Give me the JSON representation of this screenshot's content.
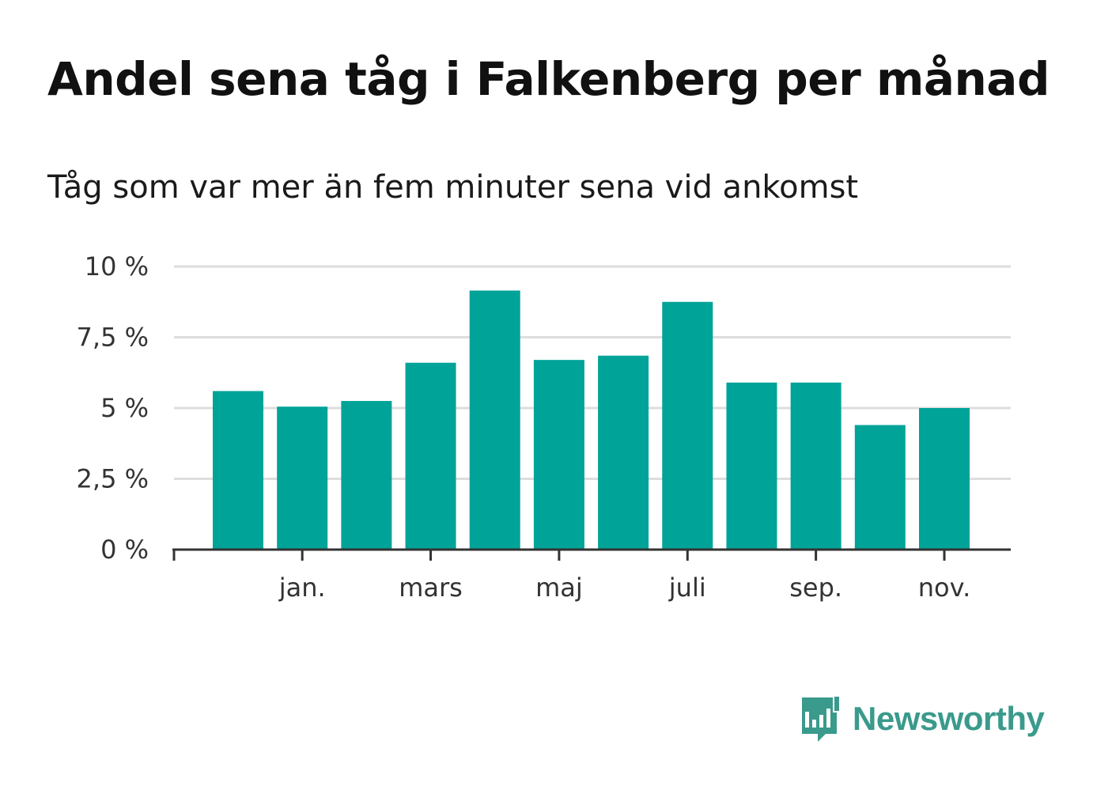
{
  "header": {
    "title": "Andel sena tåg i Falkenberg per månad",
    "subtitle": "Tåg som var mer än fem minuter sena vid ankomst"
  },
  "colors": {
    "bar": "#00a398",
    "grid": "#dddddd",
    "axis": "#333333",
    "brand": "#3a9a8c"
  },
  "chart_data": {
    "type": "bar",
    "title": "Andel sena tåg i Falkenberg per månad",
    "subtitle": "Tåg som var mer än fem minuter sena vid ankomst",
    "xlabel": "",
    "ylabel": "",
    "ylim": [
      0,
      10
    ],
    "y_ticks": [
      0,
      2.5,
      5,
      7.5,
      10
    ],
    "y_tick_labels": [
      "0 %",
      "2,5 %",
      "5 %",
      "7,5 %",
      "10 %"
    ],
    "grid": true,
    "x_tick_labels": [
      {
        "label": "jan.",
        "index": 1
      },
      {
        "label": "mars",
        "index": 3
      },
      {
        "label": "maj",
        "index": 5
      },
      {
        "label": "juli",
        "index": 7
      },
      {
        "label": "sep.",
        "index": 9
      },
      {
        "label": "nov.",
        "index": 11
      }
    ],
    "values": [
      5.6,
      5.05,
      5.25,
      6.6,
      9.15,
      6.7,
      6.85,
      8.75,
      5.9,
      5.9,
      4.4,
      5.0
    ],
    "unit": "%"
  },
  "branding": {
    "logo_icon": "chart-bubble-icon",
    "name": "Newsworthy"
  }
}
